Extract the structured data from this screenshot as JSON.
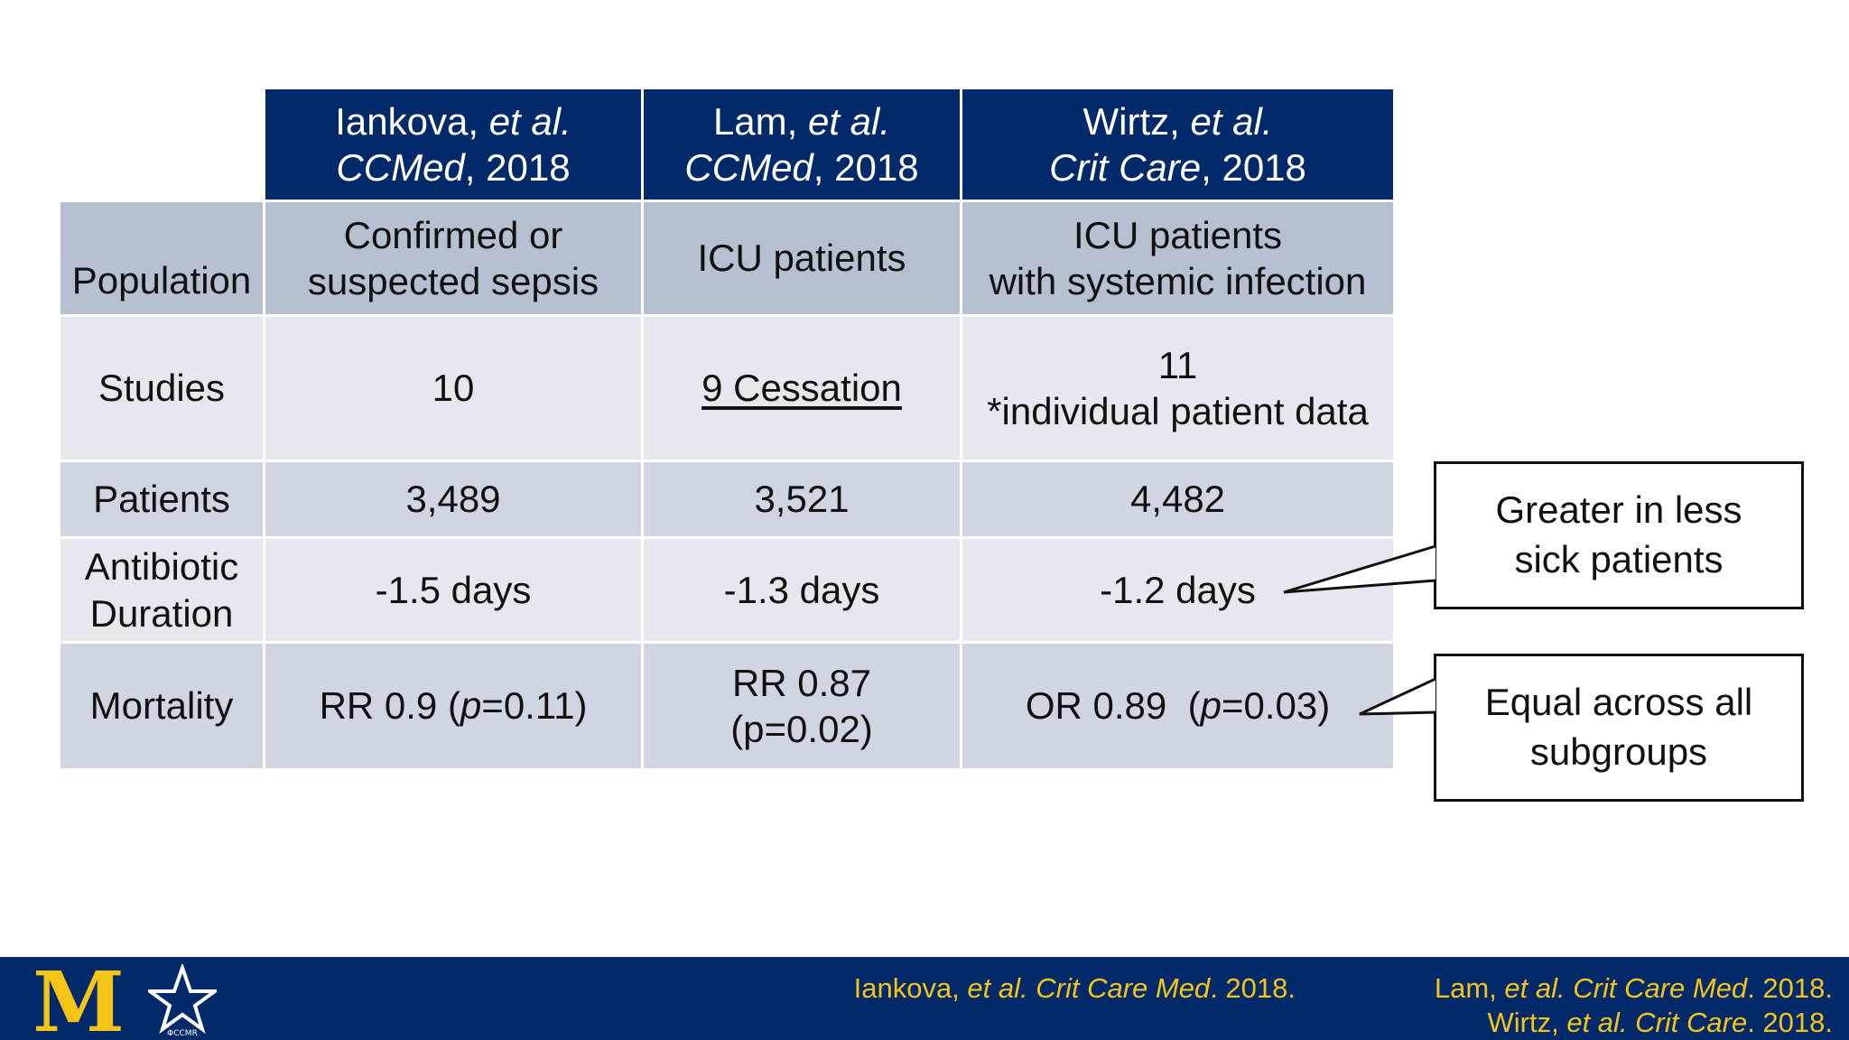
{
  "studies": [
    {
      "author": "Iankova, ",
      "etal": "et al.",
      "journal": "CCMed",
      "year": ", 2018"
    },
    {
      "author": "Lam, ",
      "etal": "et al.",
      "journal": "CCMed",
      "year": ", 2018"
    },
    {
      "author": "Wirtz, ",
      "etal": "et al.",
      "journal": "Crit Care",
      "year": ", 2018"
    }
  ],
  "rows": {
    "population": {
      "label": "Population",
      "cells": [
        {
          "l1": "Confirmed or",
          "l2": "suspected sepsis"
        },
        {
          "l1": "ICU patients"
        },
        {
          "l1": "ICU patients",
          "l2": "with systemic infection"
        }
      ]
    },
    "studies": {
      "label": "Studies",
      "cells": [
        {
          "l1": "10"
        },
        {
          "l1": "9 Cessation"
        },
        {
          "l1": "11",
          "l2": "*individual patient data"
        }
      ]
    },
    "patients": {
      "label": "Patients",
      "cells": [
        {
          "l1": "3,489"
        },
        {
          "l1": "3,521"
        },
        {
          "l1": "4,482"
        }
      ]
    },
    "duration": {
      "label1": "Antibiotic",
      "label2": "Duration",
      "cells": [
        {
          "l1": "-1.5 days"
        },
        {
          "l1": "-1.3 days"
        },
        {
          "l1": "-1.2 days"
        }
      ]
    },
    "mortality": {
      "label": "Mortality",
      "cells": [
        {
          "pre": "RR 0.9 (",
          "p": "p",
          "post": "=0.11)"
        },
        {
          "l1": "RR 0.87",
          "l2": "(p=0.02)"
        },
        {
          "pre": "OR 0.89  (",
          "p": "p",
          "post": "=0.03)"
        }
      ]
    }
  },
  "callouts": {
    "duration": {
      "l1": "Greater in less",
      "l2": "sick patients"
    },
    "mortality": {
      "l1": "Equal across all",
      "l2": "subgroups"
    }
  },
  "footer": {
    "logo_letter": "M",
    "logo_star_text": "ΦCCMR",
    "cite_left": {
      "author": "Iankova, ",
      "etal": "et al. Crit Care Med",
      "year": ". 2018."
    },
    "cite_right_1": {
      "author": "Lam, ",
      "etal": "et al. Crit Care Med",
      "year": ". 2018."
    },
    "cite_right_2": {
      "author": "Wirtz, ",
      "etal": "et al. Crit Care",
      "year": ". 2018."
    }
  },
  "colors": {
    "header_bg": "#022a6a",
    "footer_bg": "#022a6a",
    "citation_text": "#f4c417",
    "label_row": "#b6c0d0",
    "light_row": "#e5e8ee",
    "mid_row": "#d0d6e1"
  }
}
